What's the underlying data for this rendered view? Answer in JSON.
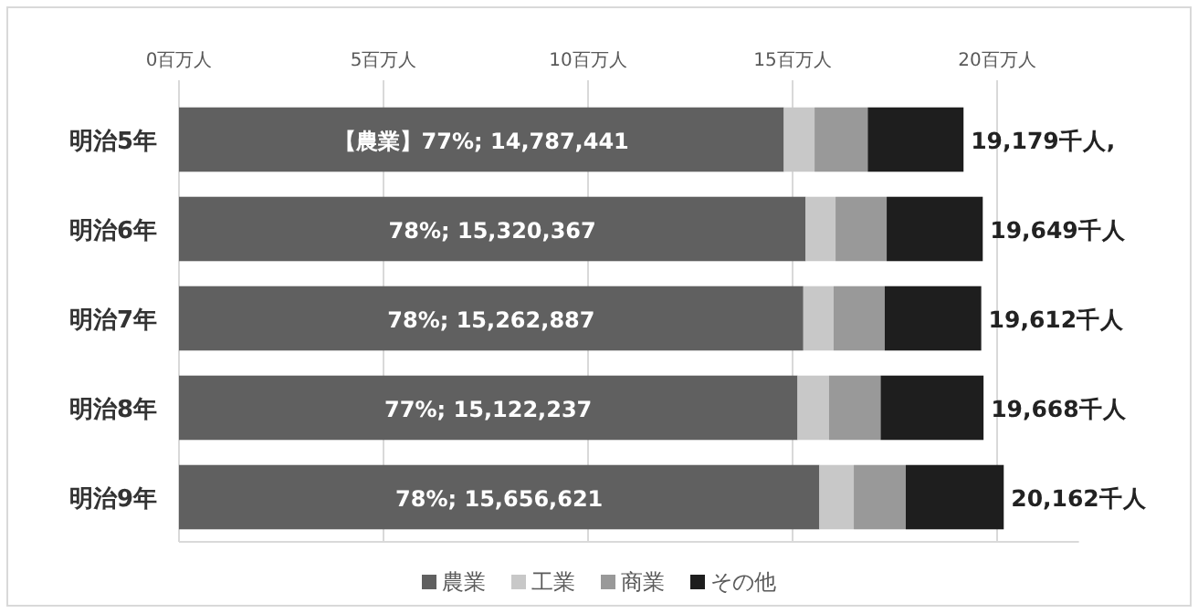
{
  "chart_data": {
    "type": "bar",
    "orientation": "horizontal",
    "stacked": true,
    "categories": [
      "明治5年",
      "明治6年",
      "明治7年",
      "明治8年",
      "明治9年"
    ],
    "series": [
      {
        "name": "農業",
        "color": "#606060",
        "values": [
          14.787441,
          15.320367,
          15.262887,
          15.122237,
          15.656621
        ]
      },
      {
        "name": "工業",
        "color": "#c8c8c8",
        "values": [
          0.75,
          0.73,
          0.74,
          0.77,
          0.84
        ]
      },
      {
        "name": "商業",
        "color": "#999999",
        "values": [
          1.3,
          1.25,
          1.25,
          1.26,
          1.27
        ]
      },
      {
        "name": "その他",
        "color": "#1e1e1e",
        "values": [
          2.341559,
          2.348633,
          2.359113,
          2.515763,
          2.395379
        ]
      }
    ],
    "totals": [
      "19,179千人,",
      "19,649千人",
      "19,612千人",
      "19,668千人",
      "20,162千人"
    ],
    "xlim": [
      0,
      22
    ],
    "xticks": [
      {
        "value": 0,
        "label": "0百万人"
      },
      {
        "value": 5,
        "label": "5百万人"
      },
      {
        "value": 10,
        "label": "10百万人"
      },
      {
        "value": 15,
        "label": "15百万人"
      },
      {
        "value": 20,
        "label": "20百万人"
      }
    ],
    "annotations": [
      "【農業】77%; 14,787,441",
      "78%; 15,320,367",
      "78%; 15,262,887",
      "77%; 15,122,237",
      "78%; 15,656,621"
    ],
    "grid": "x",
    "legend": "bottom"
  }
}
